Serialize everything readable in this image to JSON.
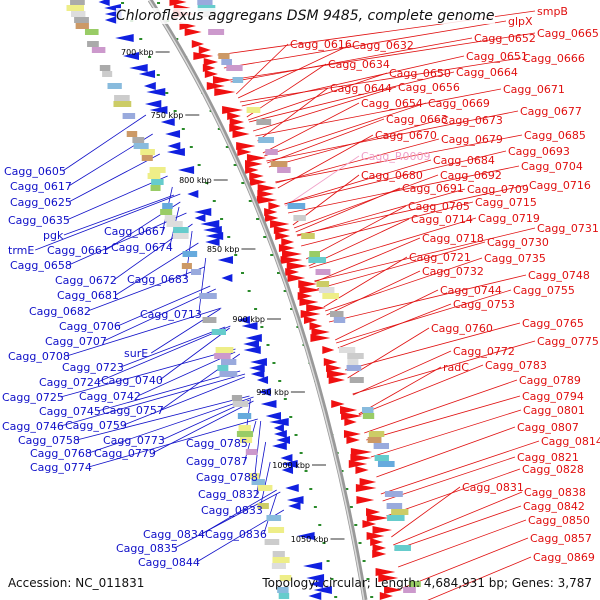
{
  "title": "Chloroflexus aggregans DSM 9485, complete genome",
  "accession": "Accession: NC_011831",
  "stats": "Topology: circular; Length: 4,684,931 bp; Genes: 3,787",
  "colors": {
    "left_labels": "#1010c8",
    "right_labels": "#e01010",
    "pink_label": "#f0a0c8",
    "reverse_arrows": "#1020e0",
    "forward_arrows": "#f01010",
    "backbone": "#999999",
    "tick": "#2a8a2a"
  },
  "kbp_ticks": [
    "700 kbp",
    "750 kbp",
    "800 kbp",
    "850 kbp",
    "900 kbp",
    "950 kbp",
    "1000 kbp",
    "1050 kbp"
  ],
  "left_genes": [
    "Cagg_0605",
    "Cagg_0617",
    "Cagg_0625",
    "Cagg_0635",
    "pgk",
    "trmE",
    "Cagg_0658",
    "Cagg_0661",
    "Cagg_0667",
    "Cagg_0674",
    "Cagg_0672",
    "Cagg_0681",
    "Cagg_0683",
    "Cagg_0682",
    "Cagg_0706",
    "Cagg_0713",
    "Cagg_0707",
    "Cagg_0708",
    "surE",
    "Cagg_0723",
    "Cagg_0724",
    "Cagg_0740",
    "Cagg_0725",
    "Cagg_0742",
    "Cagg_0745",
    "Cagg_0757",
    "Cagg_0746",
    "Cagg_0759",
    "Cagg_0758",
    "Cagg_0773",
    "Cagg_0768",
    "Cagg_0779",
    "Cagg_0774",
    "Cagg_0785",
    "Cagg_0787",
    "Cagg_0788",
    "Cagg_0832",
    "Cagg_0833",
    "Cagg_0834",
    "Cagg_0836",
    "Cagg_0835",
    "Cagg_0844"
  ],
  "right_genes": [
    "smpB",
    "glpX",
    "Cagg_0616",
    "Cagg_0632",
    "Cagg_0652",
    "Cagg_0665",
    "Cagg_0651",
    "Cagg_0634",
    "Cagg_0666",
    "Cagg_0650",
    "Cagg_0664",
    "Cagg_0644",
    "Cagg_0656",
    "Cagg_0671",
    "Cagg_0654",
    "Cagg_0669",
    "Cagg_0663",
    "Cagg_0673",
    "Cagg_0677",
    "Cagg_0670",
    "Cagg_0679",
    "Cagg_0685",
    "Cagg_R0009",
    "Cagg_0693",
    "Cagg_0684",
    "Cagg_0704",
    "Cagg_0680",
    "Cagg_0692",
    "Cagg_0691",
    "Cagg_0709",
    "Cagg_0716",
    "Cagg_0705",
    "Cagg_0715",
    "Cagg_0714",
    "Cagg_0719",
    "Cagg_0731",
    "Cagg_0718",
    "Cagg_0730",
    "Cagg_0721",
    "Cagg_0735",
    "Cagg_0732",
    "Cagg_0748",
    "Cagg_0744",
    "Cagg_0755",
    "Cagg_0753",
    "Cagg_0765",
    "Cagg_0760",
    "Cagg_0775",
    "Cagg_0772",
    "radC",
    "Cagg_0783",
    "Cagg_0789",
    "Cagg_0794",
    "Cagg_0801",
    "Cagg_0807",
    "Cagg_0814",
    "Cagg_0821",
    "Cagg_0828",
    "Cagg_0831",
    "Cagg_0838",
    "Cagg_0842",
    "Cagg_0850",
    "Cagg_0857",
    "Cagg_0869"
  ]
}
